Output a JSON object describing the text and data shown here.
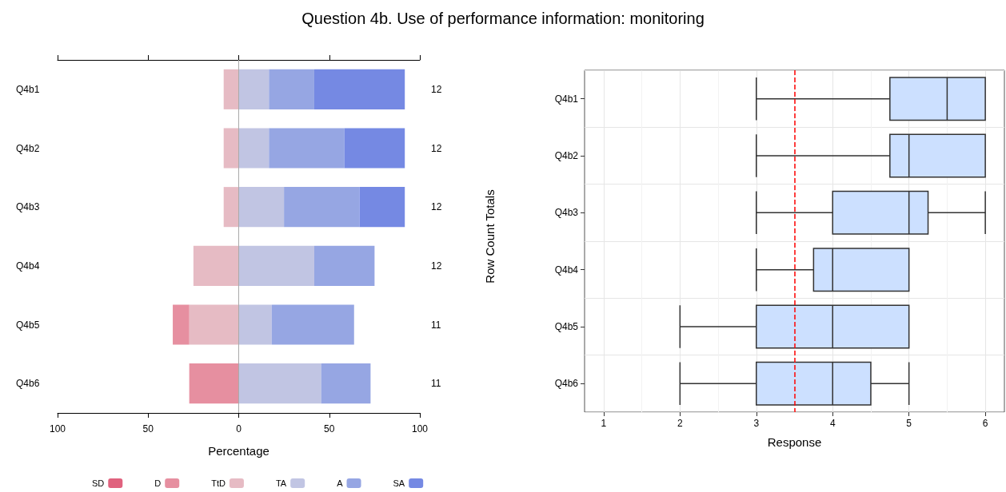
{
  "chart_data": [
    {
      "type": "bar",
      "title": "Question 4b. Use of performance information: monitoring",
      "orientation": "horizontal",
      "stacked": true,
      "categories": [
        "Q4b1",
        "Q4b2",
        "Q4b3",
        "Q4b4",
        "Q4b5",
        "Q4b6"
      ],
      "y2_categories": [
        "12",
        "12",
        "12",
        "12",
        "11",
        "11"
      ],
      "y2label": "Row Count Totals",
      "xlabel": "Percentage",
      "xlim": [
        -100,
        100
      ],
      "xticks": [
        {
          "value": -100,
          "label": "100"
        },
        {
          "value": -50,
          "label": "50"
        },
        0,
        50,
        100
      ],
      "grid": false,
      "legend": "bottom",
      "ref_lines": [
        {
          "axis": "x",
          "value": 0,
          "color": "#aaaaaa",
          "line_style": "solid"
        }
      ],
      "series": [
        {
          "name": "TtD",
          "color": "#e6bbc4",
          "values": [
            -8.3,
            -8.3,
            -8.3,
            -25,
            -27.3,
            0
          ]
        },
        {
          "name": "D",
          "color": "#e68fa0",
          "values": [
            0,
            0,
            0,
            0,
            -9.1,
            -27.3
          ]
        },
        {
          "name": "SD",
          "color": "#e0627e",
          "values": [
            0,
            0,
            0,
            0,
            0,
            0
          ]
        },
        {
          "name": "TA",
          "color": "#c1c5e3",
          "values": [
            16.7,
            16.7,
            25,
            41.7,
            18.2,
            45.5
          ]
        },
        {
          "name": "A",
          "color": "#96a6e3",
          "values": [
            25,
            41.7,
            41.7,
            33.3,
            45.5,
            27.3
          ]
        },
        {
          "name": "SA",
          "color": "#7589e3",
          "values": [
            50,
            33.3,
            25,
            0,
            0,
            0
          ]
        }
      ]
    },
    {
      "type": "box",
      "orientation": "horizontal",
      "categories": [
        "Q4b1",
        "Q4b2",
        "Q4b3",
        "Q4b4",
        "Q4b5",
        "Q4b6"
      ],
      "xlabel": "Response",
      "xlim": [
        0.75,
        6.25
      ],
      "xticks": [
        1,
        2,
        3,
        4,
        5,
        6
      ],
      "grid": true,
      "color": "#cce0ff",
      "boxes": [
        {
          "low": 3,
          "q1": 4.75,
          "median": 5.5,
          "q3": 6,
          "high": 6
        },
        {
          "low": 3,
          "q1": 4.75,
          "median": 5,
          "q3": 6,
          "high": 6
        },
        {
          "low": 3,
          "q1": 4,
          "median": 5,
          "q3": 5.25,
          "high": 6
        },
        {
          "low": 3,
          "q1": 3.75,
          "median": 4,
          "q3": 5,
          "high": 5
        },
        {
          "low": 2,
          "q1": 3,
          "median": 4,
          "q3": 5,
          "high": 5
        },
        {
          "low": 2,
          "q1": 3,
          "median": 4,
          "q3": 4.5,
          "high": 5
        }
      ],
      "ref_lines": [
        {
          "axis": "x",
          "value": 3.5,
          "color": "#ff0000",
          "line_style": "dashed"
        }
      ]
    }
  ]
}
